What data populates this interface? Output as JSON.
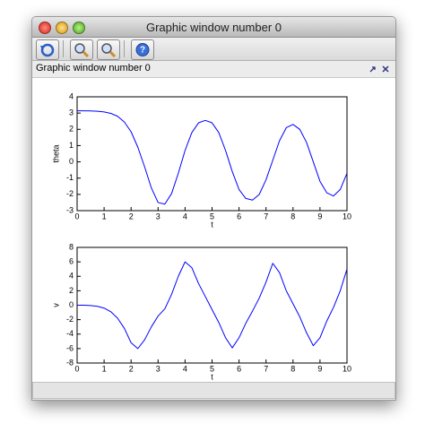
{
  "window": {
    "title": "Graphic window number 0",
    "panel_title": "Graphic window number 0"
  },
  "chart_data": [
    {
      "type": "line",
      "xlabel": "t",
      "ylabel": "theta",
      "color": "#0000ff",
      "x": [
        0,
        0.25,
        0.5,
        0.75,
        1,
        1.25,
        1.5,
        1.75,
        2,
        2.25,
        2.5,
        2.75,
        3,
        3.25,
        3.5,
        3.75,
        4,
        4.25,
        4.5,
        4.75,
        5,
        5.25,
        5.5,
        5.75,
        6,
        6.25,
        6.5,
        6.75,
        7,
        7.25,
        7.5,
        7.75,
        8,
        8.25,
        8.5,
        8.75,
        9,
        9.25,
        9.5,
        9.75,
        10
      ],
      "values": [
        3.14,
        3.14,
        3.13,
        3.11,
        3.07,
        2.98,
        2.8,
        2.45,
        1.85,
        0.9,
        -0.3,
        -1.6,
        -2.5,
        -2.6,
        -1.95,
        -0.7,
        0.7,
        1.8,
        2.4,
        2.55,
        2.4,
        1.8,
        0.7,
        -0.6,
        -1.7,
        -2.25,
        -2.35,
        -2.0,
        -1.1,
        0.1,
        1.3,
        2.1,
        2.3,
        2.0,
        1.2,
        0.0,
        -1.2,
        -1.9,
        -2.1,
        -1.7,
        -0.7
      ],
      "xlim": [
        0,
        10
      ],
      "xticks": [
        0,
        1,
        2,
        3,
        4,
        5,
        6,
        7,
        8,
        9,
        10
      ],
      "ylim": [
        -3,
        4
      ],
      "yticks": [
        -3,
        -2,
        -1,
        0,
        1,
        2,
        3,
        4
      ]
    },
    {
      "type": "line",
      "xlabel": "t",
      "ylabel": "v",
      "color": "#0000ff",
      "x": [
        0,
        0.25,
        0.5,
        0.75,
        1,
        1.25,
        1.5,
        1.75,
        2,
        2.25,
        2.5,
        2.75,
        3,
        3.25,
        3.5,
        3.75,
        4,
        4.25,
        4.5,
        4.75,
        5,
        5.25,
        5.5,
        5.75,
        6,
        6.25,
        6.5,
        6.75,
        7,
        7.25,
        7.5,
        7.75,
        8,
        8.25,
        8.5,
        8.75,
        9,
        9.25,
        9.5,
        9.75,
        10
      ],
      "values": [
        0,
        0,
        -0.05,
        -0.15,
        -0.4,
        -0.9,
        -1.8,
        -3.2,
        -5.2,
        -6.0,
        -4.8,
        -3.0,
        -1.5,
        -0.5,
        1.5,
        4.0,
        6.0,
        5.2,
        3.0,
        1.2,
        -0.6,
        -2.4,
        -4.5,
        -5.9,
        -4.5,
        -2.5,
        -0.8,
        1.0,
        3.2,
        5.8,
        4.5,
        2.0,
        0.2,
        -1.6,
        -3.8,
        -5.6,
        -4.5,
        -2.2,
        -0.3,
        2.0,
        5.0
      ],
      "xlim": [
        0,
        10
      ],
      "xticks": [
        0,
        1,
        2,
        3,
        4,
        5,
        6,
        7,
        8,
        9,
        10
      ],
      "ylim": [
        -8,
        8
      ],
      "yticks": [
        -8,
        -6,
        -4,
        -2,
        0,
        2,
        4,
        6,
        8
      ]
    }
  ]
}
